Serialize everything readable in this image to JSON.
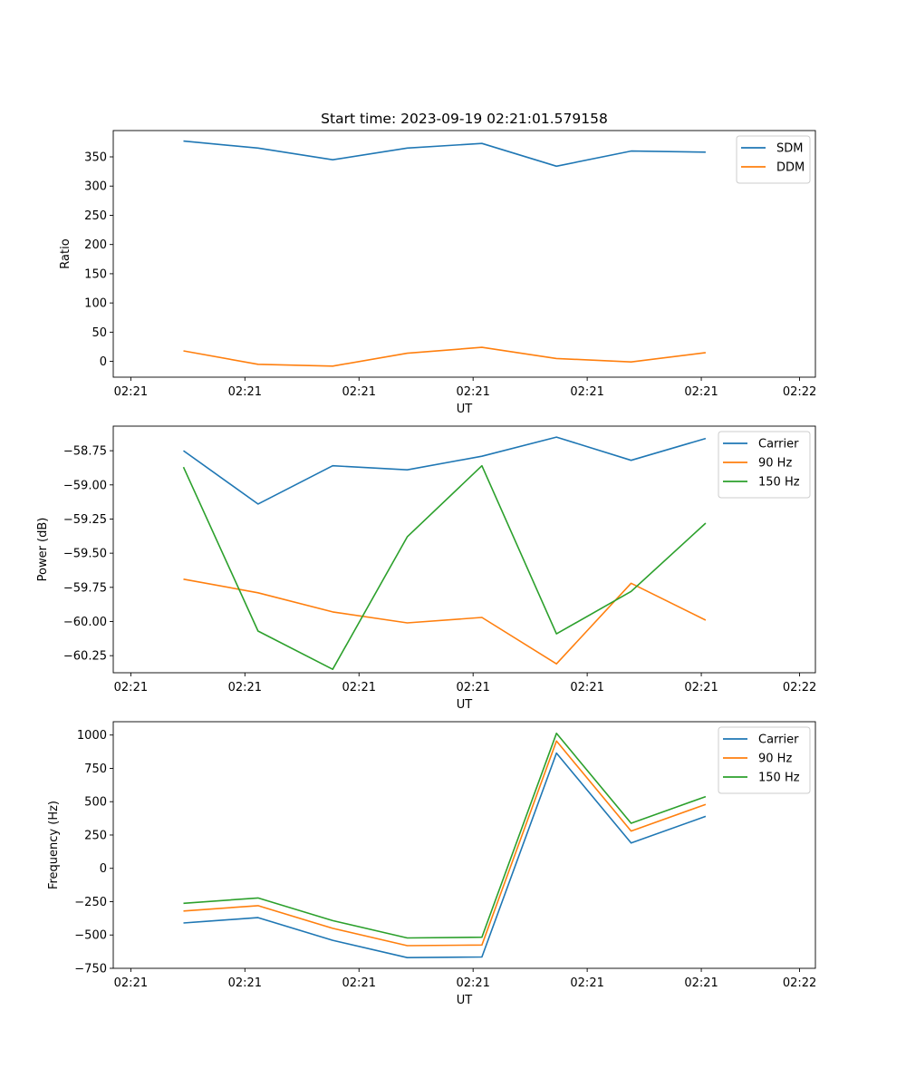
{
  "chart_data": [
    {
      "type": "line",
      "title": "Start time: 2023-09-19 02:21:01.579158",
      "xlabel": "UT",
      "ylabel": "Ratio",
      "xtick_labels": [
        "02:21",
        "02:21",
        "02:21",
        "02:21",
        "02:21",
        "02:21",
        "02:22"
      ],
      "ylim": [
        -27,
        395
      ],
      "yticks": [
        0,
        50,
        100,
        150,
        200,
        250,
        300,
        350
      ],
      "ytick_labels": [
        "0",
        "50",
        "100",
        "150",
        "200",
        "250",
        "300",
        "350"
      ],
      "legend_position": "upper right",
      "grid": false,
      "series": [
        {
          "name": "SDM",
          "color": "#1f77b4",
          "values": [
            377,
            365,
            345,
            365,
            373,
            334,
            360,
            358
          ]
        },
        {
          "name": "DDM",
          "color": "#ff7f0e",
          "values": [
            18,
            -5,
            -8,
            14,
            24,
            5,
            -1,
            15
          ]
        }
      ]
    },
    {
      "type": "line",
      "title": "",
      "xlabel": "UT",
      "ylabel": "Power (dB)",
      "xtick_labels": [
        "02:21",
        "02:21",
        "02:21",
        "02:21",
        "02:21",
        "02:21",
        "02:22"
      ],
      "ylim": [
        -60.375,
        -58.57
      ],
      "yticks": [
        -58.75,
        -59.0,
        -59.25,
        -59.5,
        -59.75,
        -60.0,
        -60.25
      ],
      "ytick_labels": [
        "−58.75",
        "−59.00",
        "−59.25",
        "−59.50",
        "−59.75",
        "−60.00",
        "−60.25"
      ],
      "legend_position": "upper right",
      "grid": false,
      "series": [
        {
          "name": "Carrier",
          "color": "#1f77b4",
          "values": [
            -58.75,
            -59.14,
            -58.86,
            -58.89,
            -58.79,
            -58.65,
            -58.82,
            -58.66
          ]
        },
        {
          "name": "90 Hz",
          "color": "#ff7f0e",
          "values": [
            -59.69,
            -59.79,
            -59.93,
            -60.01,
            -59.97,
            -60.31,
            -59.72,
            -59.99
          ]
        },
        {
          "name": "150 Hz",
          "color": "#2ca02c",
          "values": [
            -58.87,
            -60.07,
            -60.35,
            -59.38,
            -58.86,
            -60.09,
            -59.78,
            -59.28
          ]
        }
      ]
    },
    {
      "type": "line",
      "title": "",
      "xlabel": "UT",
      "ylabel": "Frequency (Hz)",
      "xtick_labels": [
        "02:21",
        "02:21",
        "02:21",
        "02:21",
        "02:21",
        "02:21",
        "02:22"
      ],
      "ylim": [
        -750,
        1100
      ],
      "yticks": [
        -750,
        -500,
        -250,
        0,
        250,
        500,
        750,
        1000
      ],
      "ytick_labels": [
        "−750",
        "−500",
        "−250",
        "0",
        "250",
        "500",
        "750",
        "1000"
      ],
      "legend_position": "upper right",
      "grid": false,
      "series": [
        {
          "name": "Carrier",
          "color": "#1f77b4",
          "values": [
            -410,
            -370,
            -540,
            -670,
            -665,
            865,
            190,
            390
          ]
        },
        {
          "name": "90 Hz",
          "color": "#ff7f0e",
          "values": [
            -320,
            -280,
            -450,
            -580,
            -575,
            955,
            280,
            480
          ]
        },
        {
          "name": "150 Hz",
          "color": "#2ca02c",
          "values": [
            -262,
            -222,
            -392,
            -522,
            -517,
            1013,
            338,
            538
          ]
        }
      ]
    }
  ]
}
